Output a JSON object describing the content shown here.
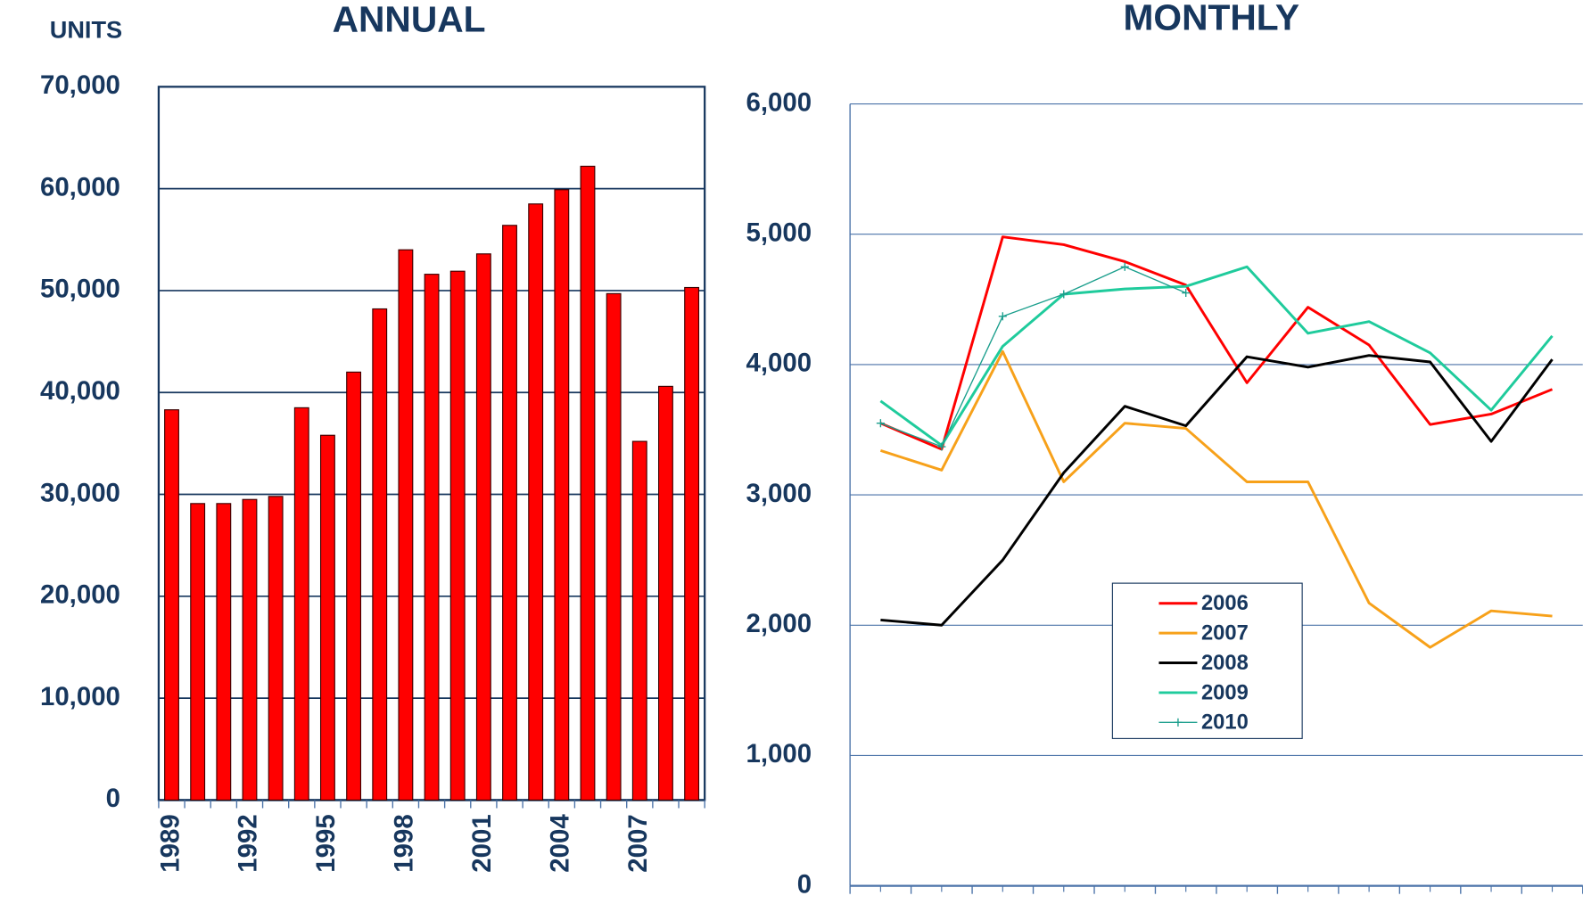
{
  "chart_data": [
    {
      "type": "bar",
      "title": "ANNUAL",
      "ylabel": "UNITS",
      "categories": [
        "1989",
        null,
        null,
        "1992",
        null,
        null,
        "1995",
        null,
        null,
        "1998",
        null,
        null,
        "2001",
        null,
        null,
        "2004",
        null,
        null,
        "2007",
        null,
        null
      ],
      "values": [
        38300,
        29100,
        29100,
        29500,
        29800,
        38500,
        35800,
        42000,
        48200,
        54000,
        51600,
        51900,
        53600,
        56400,
        58500,
        59900,
        62200,
        49700,
        35200,
        40600,
        50300
      ],
      "color": "#ff0000",
      "ylim": [
        0,
        70000
      ],
      "yticks": [
        0,
        {
          "value": 10000,
          "label": "10,000"
        },
        {
          "value": 20000,
          "label": "20,000"
        },
        {
          "value": 30000,
          "label": "30,000"
        },
        {
          "value": 40000,
          "label": "40,000"
        },
        {
          "value": 50000,
          "label": "50,000"
        },
        {
          "value": 60000,
          "label": "60,000"
        },
        {
          "value": 70000,
          "label": "70,000"
        }
      ],
      "grid": true
    },
    {
      "type": "line",
      "title": "MONTHLY",
      "categories": [
        null,
        null,
        null,
        null,
        null,
        null,
        null,
        null,
        null,
        null,
        null,
        null
      ],
      "series": [
        {
          "name": "2006",
          "color": "#ff0000",
          "values": [
            3550,
            3350,
            4980,
            4920,
            4790,
            4610,
            3860,
            4440,
            4150,
            3540,
            3620,
            3810
          ]
        },
        {
          "name": "2007",
          "color": "#f7a11a",
          "values": [
            3340,
            3190,
            4100,
            3100,
            3550,
            3510,
            3100,
            3100,
            2170,
            1830,
            2110,
            2070
          ]
        },
        {
          "name": "2008",
          "color": "#000000",
          "values": [
            2040,
            2000,
            2500,
            3170,
            3680,
            3530,
            4060,
            3980,
            4070,
            4020,
            3410,
            4040
          ]
        },
        {
          "name": "2009",
          "color": "#1fcb9c",
          "values": [
            3720,
            3380,
            4140,
            4540,
            4580,
            4600,
            4750,
            4240,
            4330,
            4090,
            3650,
            4220
          ]
        },
        {
          "name": "2010",
          "color": "#1a9e8c",
          "marker": "+",
          "values": [
            3550,
            3370,
            4370,
            4540,
            4750,
            4550,
            null,
            null,
            null,
            null,
            null,
            null
          ]
        }
      ],
      "ylim": [
        0,
        6000
      ],
      "yticks": [
        0,
        {
          "value": 1000,
          "label": "1,000"
        },
        {
          "value": 2000,
          "label": "2,000"
        },
        {
          "value": 3000,
          "label": "3,000"
        },
        {
          "value": 4000,
          "label": "4,000"
        },
        {
          "value": 5000,
          "label": "5,000"
        },
        {
          "value": 6000,
          "label": "6,000"
        }
      ],
      "grid": true,
      "legend": "center"
    }
  ]
}
